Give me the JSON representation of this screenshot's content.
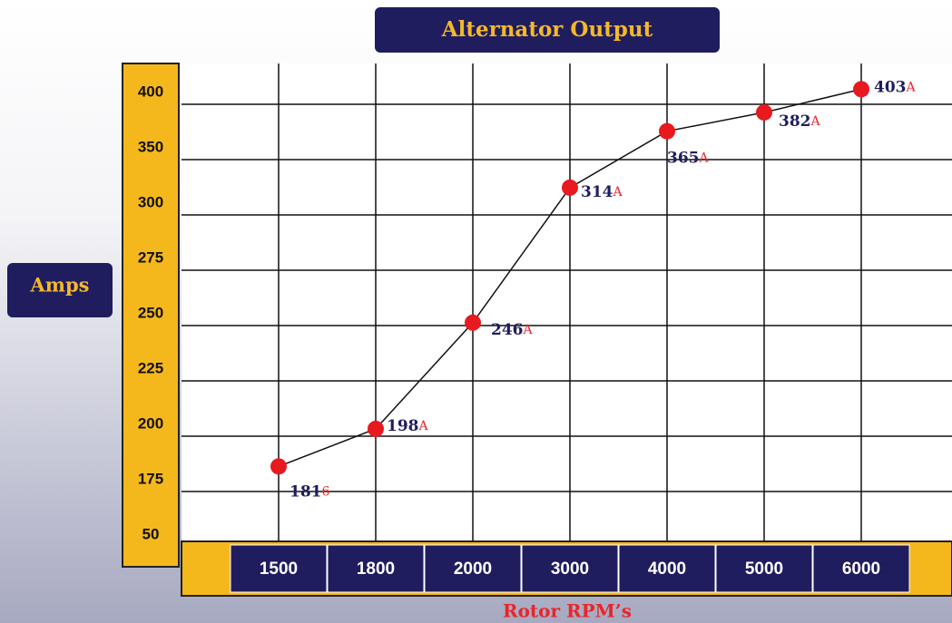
{
  "chart_data": {
    "type": "line",
    "title": "Alternator Output",
    "y_label": "Amps",
    "x_label": "Rotor RPM’s",
    "categories": [
      "1500",
      "1800",
      "2000",
      "3000",
      "4000",
      "5000",
      "6000"
    ],
    "series": [
      {
        "name": "Amps",
        "color": "#e8191f",
        "values": [
          181,
          198,
          246,
          314,
          365,
          382,
          403
        ],
        "value_labels": [
          "181",
          "198",
          "246",
          "314",
          "365",
          "382",
          "403"
        ],
        "value_units": [
          "6",
          "A",
          "A",
          "A",
          "A",
          "A",
          "A"
        ]
      }
    ],
    "yticks": [
      50,
      175,
      200,
      225,
      250,
      275,
      300,
      350,
      400
    ],
    "grid": true
  }
}
